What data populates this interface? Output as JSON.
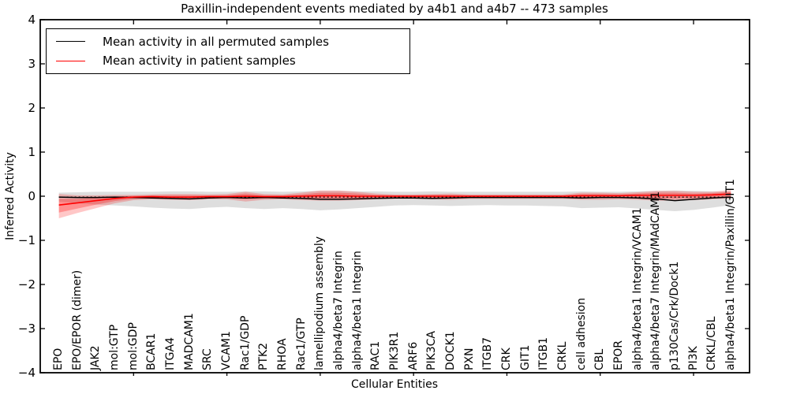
{
  "chart_data": {
    "type": "line",
    "title": "Paxillin-independent events mediated by a4b1 and a4b7 -- 473 samples",
    "xlabel": "Cellular Entities",
    "ylabel": "Inferred Activity",
    "ylim": [
      -4,
      4
    ],
    "xlim": [
      0,
      38
    ],
    "grid": false,
    "ytick_values": [
      -4,
      -3,
      -2,
      -1,
      0,
      1,
      2,
      3,
      4
    ],
    "ytick_labels": [
      "−4",
      "−3",
      "−2",
      "−1",
      "0",
      "1",
      "2",
      "3",
      "4"
    ],
    "xtick_positions": [
      5,
      10,
      15,
      20,
      25,
      30,
      35
    ],
    "categories": [
      "EPO",
      "EPO/EPOR (dimer)",
      "JAK2",
      "mol:GTP",
      "mol:GDP",
      "BCAR1",
      "ITGA4",
      "MADCAM1",
      "SRC",
      "VCAM1",
      "Rac1/GDP",
      "PTK2",
      "RHOA",
      "Rac1/GTP",
      "lamellipodium assembly",
      "alpha4/beta7 Integrin",
      "alpha4/beta1 Integrin",
      "RAC1",
      "PIK3R1",
      "ARF6",
      "PIK3CA",
      "DOCK1",
      "PXN",
      "ITGB7",
      "CRK",
      "GIT1",
      "ITGB1",
      "CRKL",
      "cell adhesion",
      "CBL",
      "EPOR",
      "alpha4/beta1 Integrin/VCAM1",
      "alpha4/beta7 Integrin/MAdCAM1",
      "p130Cas/Crk/Dock1",
      "PI3K",
      "CRKL/CBL",
      "alpha4/beta1 Integrin/Paxillin/GIT1"
    ],
    "series": [
      {
        "name": "mean-permuted-line",
        "label": "Mean activity in all permuted samples",
        "color": "#000000",
        "style": "solid",
        "width": 1.5,
        "values": [
          -0.02,
          -0.03,
          -0.03,
          -0.02,
          -0.03,
          -0.04,
          -0.05,
          -0.06,
          -0.04,
          -0.03,
          -0.04,
          -0.03,
          -0.04,
          -0.05,
          -0.07,
          -0.07,
          -0.06,
          -0.05,
          -0.04,
          -0.04,
          -0.05,
          -0.04,
          -0.03,
          -0.03,
          -0.03,
          -0.03,
          -0.03,
          -0.03,
          -0.04,
          -0.03,
          -0.03,
          -0.04,
          -0.06,
          -0.1,
          -0.07,
          -0.04,
          -0.02
        ]
      },
      {
        "name": "dotted-reference-line",
        "label": "",
        "color": "#000000",
        "style": "dotted",
        "width": 1.2,
        "values": [
          -0.02,
          -0.02,
          -0.02,
          -0.02,
          -0.02,
          -0.02,
          -0.02,
          -0.02,
          -0.02,
          -0.02,
          -0.02,
          -0.02,
          -0.02,
          -0.02,
          -0.02,
          -0.02,
          -0.02,
          -0.02,
          -0.02,
          -0.02,
          -0.02,
          -0.02,
          -0.02,
          -0.02,
          -0.02,
          -0.02,
          -0.02,
          -0.02,
          -0.02,
          -0.02,
          -0.02,
          -0.02,
          -0.02,
          -0.02,
          -0.02,
          -0.02,
          -0.02
        ]
      },
      {
        "name": "mean-patient-line",
        "label": "Mean activity in patient samples",
        "color": "#ff0000",
        "style": "solid",
        "width": 1.6,
        "values": [
          -0.2,
          -0.15,
          -0.1,
          -0.05,
          -0.02,
          -0.01,
          -0.02,
          -0.02,
          -0.01,
          -0.01,
          0.0,
          -0.01,
          -0.01,
          0.0,
          0.01,
          0.01,
          0.0,
          0.0,
          0.0,
          0.0,
          0.0,
          0.0,
          0.0,
          0.0,
          0.0,
          0.0,
          0.0,
          0.0,
          0.01,
          0.01,
          0.01,
          0.02,
          0.02,
          0.02,
          0.02,
          0.03,
          0.05
        ]
      }
    ],
    "bands": [
      {
        "name": "permuted-std-band",
        "color": "rgba(0,0,0,0.13)",
        "upper": [
          0.08,
          0.09,
          0.1,
          0.1,
          0.1,
          0.1,
          0.11,
          0.11,
          0.1,
          0.1,
          0.11,
          0.11,
          0.1,
          0.11,
          0.12,
          0.12,
          0.11,
          0.11,
          0.1,
          0.1,
          0.11,
          0.1,
          0.1,
          0.1,
          0.1,
          0.1,
          0.1,
          0.1,
          0.11,
          0.1,
          0.1,
          0.11,
          0.12,
          0.13,
          0.12,
          0.11,
          0.1
        ],
        "lower": [
          -0.12,
          -0.16,
          -0.19,
          -0.21,
          -0.23,
          -0.26,
          -0.28,
          -0.29,
          -0.26,
          -0.24,
          -0.27,
          -0.29,
          -0.27,
          -0.29,
          -0.32,
          -0.3,
          -0.27,
          -0.24,
          -0.21,
          -0.2,
          -0.21,
          -0.22,
          -0.21,
          -0.2,
          -0.21,
          -0.21,
          -0.22,
          -0.23,
          -0.27,
          -0.26,
          -0.25,
          -0.28,
          -0.31,
          -0.34,
          -0.31,
          -0.26,
          -0.2
        ]
      },
      {
        "name": "patient-std-band-outer",
        "color": "rgba(255,0,0,0.22)",
        "upper": [
          0.05,
          0.02,
          0.02,
          0.03,
          0.03,
          0.04,
          0.05,
          0.05,
          0.04,
          0.05,
          0.1,
          0.05,
          0.04,
          0.08,
          0.13,
          0.13,
          0.1,
          0.06,
          0.04,
          0.04,
          0.05,
          0.06,
          0.04,
          0.04,
          0.04,
          0.04,
          0.04,
          0.04,
          0.08,
          0.08,
          0.07,
          0.09,
          0.12,
          0.12,
          0.1,
          0.1,
          0.14
        ],
        "lower": [
          -0.5,
          -0.38,
          -0.27,
          -0.16,
          -0.09,
          -0.07,
          -0.08,
          -0.09,
          -0.07,
          -0.07,
          -0.12,
          -0.08,
          -0.07,
          -0.09,
          -0.1,
          -0.1,
          -0.09,
          -0.07,
          -0.06,
          -0.06,
          -0.07,
          -0.08,
          -0.06,
          -0.06,
          -0.06,
          -0.06,
          -0.06,
          -0.06,
          -0.08,
          -0.08,
          -0.07,
          -0.08,
          -0.1,
          -0.1,
          -0.09,
          -0.07,
          -0.05
        ]
      },
      {
        "name": "patient-std-band-inner",
        "color": "rgba(255,0,0,0.28)",
        "upper": [
          -0.06,
          -0.06,
          -0.03,
          -0.01,
          0.01,
          0.02,
          0.02,
          0.02,
          0.02,
          0.02,
          0.06,
          0.02,
          0.02,
          0.04,
          0.08,
          0.08,
          0.06,
          0.03,
          0.02,
          0.02,
          0.03,
          0.03,
          0.02,
          0.02,
          0.02,
          0.02,
          0.02,
          0.02,
          0.05,
          0.05,
          0.04,
          0.06,
          0.08,
          0.08,
          0.06,
          0.07,
          0.1
        ],
        "lower": [
          -0.37,
          -0.28,
          -0.19,
          -0.11,
          -0.06,
          -0.04,
          -0.05,
          -0.06,
          -0.04,
          -0.04,
          -0.07,
          -0.05,
          -0.04,
          -0.05,
          -0.05,
          -0.05,
          -0.05,
          -0.04,
          -0.03,
          -0.03,
          -0.04,
          -0.04,
          -0.03,
          -0.03,
          -0.03,
          -0.03,
          -0.03,
          -0.03,
          -0.04,
          -0.04,
          -0.03,
          -0.04,
          -0.05,
          -0.05,
          -0.04,
          -0.03,
          -0.01
        ]
      }
    ],
    "legend": {
      "position": "upper left",
      "entries": [
        {
          "label": "Mean activity in all permuted samples",
          "color": "#000000"
        },
        {
          "label": "Mean activity in patient samples",
          "color": "#ff0000"
        }
      ]
    },
    "axis_color": "#000000"
  }
}
